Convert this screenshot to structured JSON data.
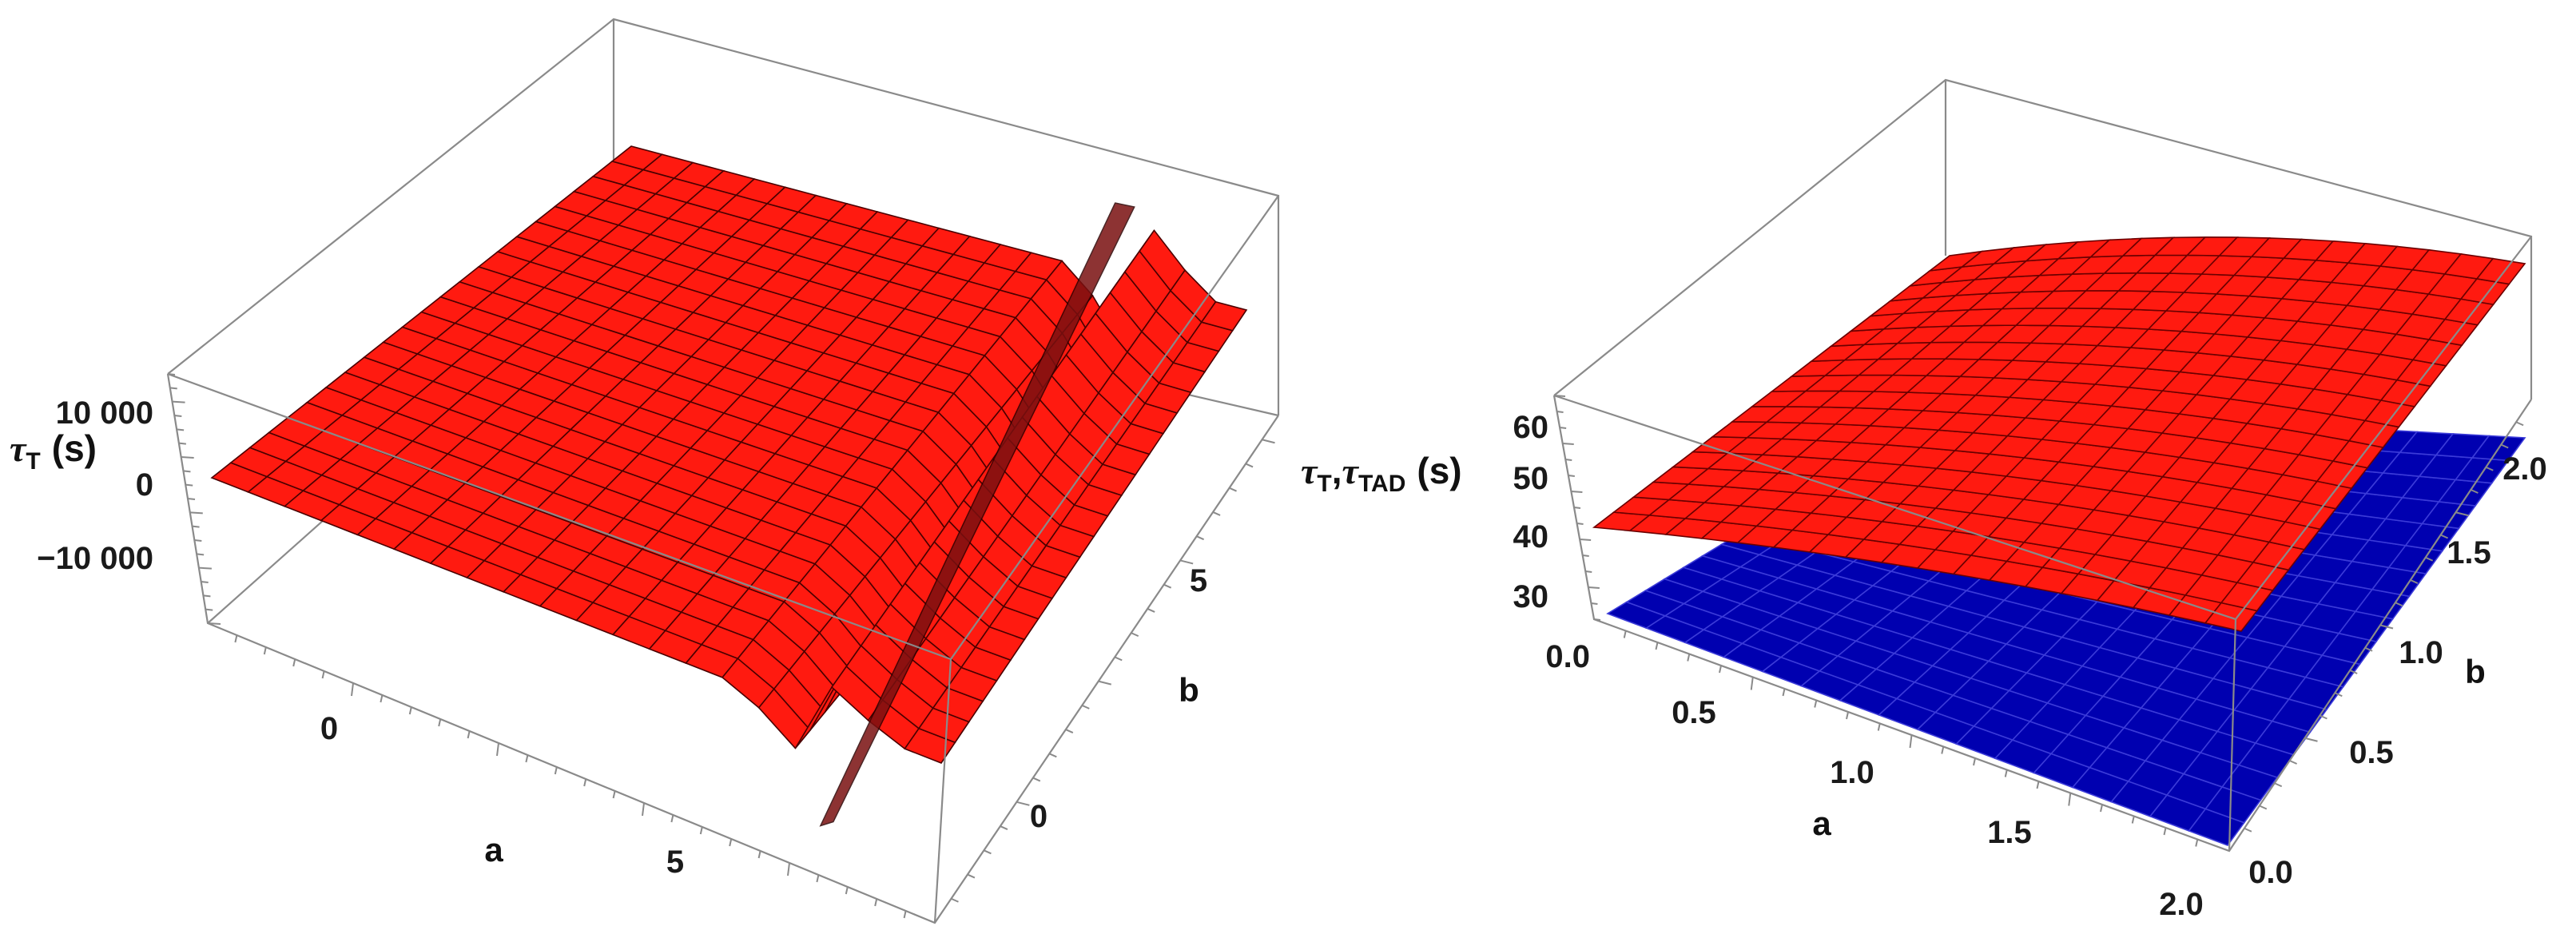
{
  "chart_data": [
    {
      "type": "surface3d",
      "xlabel": "a",
      "ylabel": "b",
      "zlabel_symbol": "τ",
      "zlabel_sub": "T",
      "zlabel_unit": "(s)",
      "x_ticks": [
        "0",
        "5"
      ],
      "y_ticks": [
        "0",
        "5"
      ],
      "z_ticks": [
        "10 000",
        "0",
        "−10 000"
      ],
      "xlim": [
        -3,
        9
      ],
      "ylim": [
        -2,
        9
      ],
      "zlim": [
        -20000,
        20000
      ],
      "series": [
        {
          "color": "#ff0000",
          "description_values": {
            "flat_level": 0,
            "spike_at_a": 7.6,
            "spike_min": -20000,
            "spike_max": 20000
          }
        }
      ]
    },
    {
      "type": "surface3d",
      "xlabel": "a",
      "ylabel": "b",
      "zlabel_symbol": "τ",
      "zlabel_sub": "T",
      "zlabel_sep": ",",
      "zlabel_symbol2": "τ",
      "zlabel_sub2": "TAD",
      "zlabel_unit": "(s)",
      "x_ticks": [
        "0.5",
        "1.0",
        "1.5",
        "2.0"
      ],
      "y_ticks": [
        "0.0",
        "0.5",
        "1.0",
        "1.5",
        "2.0"
      ],
      "z_ticks": [
        "60",
        "50",
        "40",
        "30"
      ],
      "xlim": [
        0,
        2
      ],
      "ylim": [
        0,
        2
      ],
      "zlim": [
        25,
        65
      ],
      "series": [
        {
          "color": "#ff0000",
          "corner_values": {
            "a0b0": 43,
            "a2b0": 25,
            "a0b2": 55,
            "a2b2": 63
          }
        },
        {
          "color": "#0000aa",
          "corner_values": {
            "a0b0": 25,
            "a2b0": 25,
            "a0b2": 25,
            "a2b2": 25
          }
        }
      ]
    }
  ]
}
